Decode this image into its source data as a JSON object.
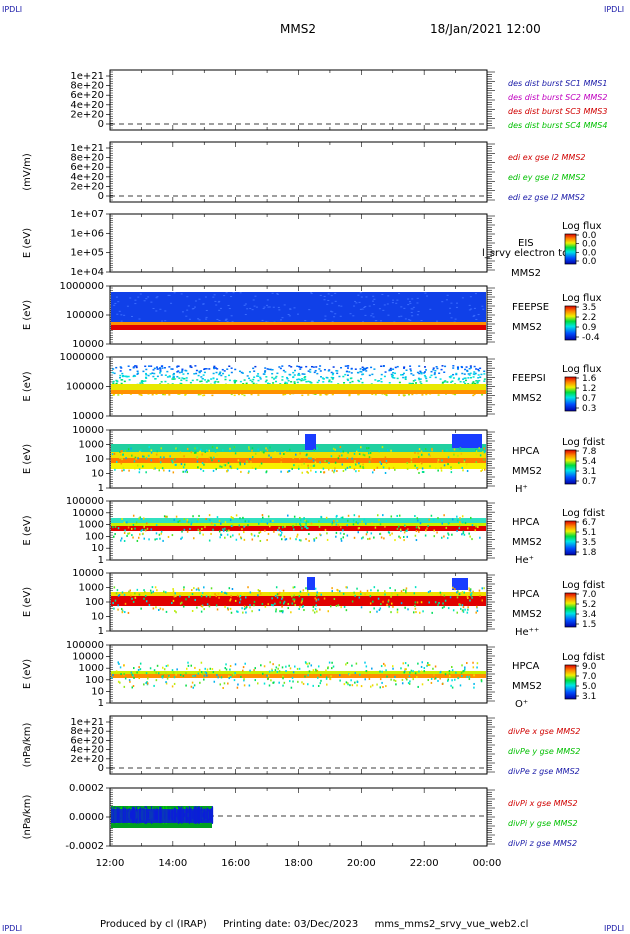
{
  "header": {
    "corner_label": "IPDLI",
    "spacecraft": "MMS2",
    "datetime": "18/Jan/2021 12:00"
  },
  "footer": {
    "produced_by": "Produced by cl (IRAP)",
    "printing_date": "Printing date: 03/Dec/2023",
    "filename": "mms_mms2_srvy_vue_web2.cl"
  },
  "chart_data": {
    "type": "heatmap",
    "x_ticks": [
      "12:00",
      "14:00",
      "16:00",
      "18:00",
      "20:00",
      "22:00",
      "00:00"
    ],
    "panels": [
      {
        "id": "des-dist",
        "kind": "line",
        "ylabel": "",
        "yticks": [
          "1e+21",
          "8e+20",
          "6e+20",
          "4e+20",
          "2e+20",
          "0"
        ],
        "legend": [
          {
            "text": "des dist burst SC1 MMS1",
            "color": "#1a1aa8"
          },
          {
            "text": "des dist burst SC2 MMS2",
            "color": "#c000c0"
          },
          {
            "text": "des dist burst SC3 MMS3",
            "color": "#d00000"
          },
          {
            "text": "des dist burst SC4 MMS4",
            "color": "#00c000"
          }
        ]
      },
      {
        "id": "edi",
        "kind": "line",
        "ylabel": "(mV/m)",
        "yticks": [
          "1e+21",
          "8e+20",
          "6e+20",
          "4e+20",
          "2e+20",
          "0"
        ],
        "legend": [
          {
            "text": "edi ex gse l2 MMS2",
            "color": "#d00000"
          },
          {
            "text": "edi ey gse l2 MMS2",
            "color": "#00c000"
          },
          {
            "text": "edi ez gse l2 MMS2",
            "color": "#1a1aa8"
          }
        ]
      },
      {
        "id": "eis",
        "kind": "empty-spectrogram",
        "ylabel": "E (eV)",
        "yticks": [
          "1e+07",
          "1e+06",
          "1e+05",
          "1e+04"
        ],
        "labels": [
          "EIS",
          "MMS2"
        ],
        "overflow_text": "l_srvy electron to",
        "cbar_title": "Log flux",
        "cbar_ticks": [
          "0.0",
          "0.0",
          "0.0",
          "0.0"
        ]
      },
      {
        "id": "feepse",
        "kind": "spectrogram",
        "ylabel": "E (eV)",
        "yticks": [
          "1000000",
          "100000",
          "10000"
        ],
        "labels": [
          "FEEPSE",
          "MMS2"
        ],
        "cbar_title": "Log flux",
        "cbar_ticks": [
          "3.5",
          "2.2",
          "0.9",
          "-0.4"
        ]
      },
      {
        "id": "feepsi",
        "kind": "spectrogram",
        "ylabel": "E (eV)",
        "yticks": [
          "1000000",
          "100000",
          "10000"
        ],
        "labels": [
          "FEEPSI",
          "MMS2"
        ],
        "cbar_title": "Log flux",
        "cbar_ticks": [
          "1.6",
          "1.2",
          "0.7",
          "0.3"
        ]
      },
      {
        "id": "hpca-h",
        "kind": "spectrogram",
        "ylabel": "E (eV)",
        "yticks": [
          "10000",
          "1000",
          "100",
          "10",
          "1"
        ],
        "labels": [
          "HPCA",
          "MMS2",
          "H⁺"
        ],
        "cbar_title": "Log fdist",
        "cbar_ticks": [
          "7.8",
          "5.4",
          "3.1",
          "0.7"
        ]
      },
      {
        "id": "hpca-he",
        "kind": "spectrogram",
        "ylabel": "E (eV)",
        "yticks": [
          "100000",
          "10000",
          "1000",
          "100",
          "10",
          "1"
        ],
        "labels": [
          "HPCA",
          "MMS2",
          "He⁺"
        ],
        "cbar_title": "Log fdist",
        "cbar_ticks": [
          "6.7",
          "5.1",
          "3.5",
          "1.8"
        ]
      },
      {
        "id": "hpca-hepp",
        "kind": "spectrogram",
        "ylabel": "E (eV)",
        "yticks": [
          "10000",
          "1000",
          "100",
          "10",
          "1"
        ],
        "labels": [
          "HPCA",
          "MMS2",
          "He⁺⁺"
        ],
        "cbar_title": "Log fdist",
        "cbar_ticks": [
          "7.0",
          "5.2",
          "3.4",
          "1.5"
        ]
      },
      {
        "id": "hpca-o",
        "kind": "spectrogram",
        "ylabel": "E (eV)",
        "yticks": [
          "100000",
          "10000",
          "1000",
          "100",
          "10",
          "1"
        ],
        "labels": [
          "HPCA",
          "MMS2",
          "O⁺"
        ],
        "cbar_title": "Log fdist",
        "cbar_ticks": [
          "9.0",
          "7.0",
          "5.0",
          "3.1"
        ]
      },
      {
        "id": "divpe",
        "kind": "line",
        "ylabel": "(nPa/km)",
        "yticks": [
          "1e+21",
          "8e+20",
          "6e+20",
          "4e+20",
          "2e+20",
          "0"
        ],
        "legend": [
          {
            "text": "divPe x gse MMS2",
            "color": "#d00000"
          },
          {
            "text": "divPe y gse MMS2",
            "color": "#00c000"
          },
          {
            "text": "divPe z gse MMS2",
            "color": "#1a1aa8"
          }
        ]
      },
      {
        "id": "divpi",
        "kind": "noise",
        "ylabel": "(nPa/km)",
        "yticks": [
          "0.0002",
          "0.0000",
          "-0.0002"
        ],
        "legend": [
          {
            "text": "divPi x gse MMS2",
            "color": "#d00000"
          },
          {
            "text": "divPi y gse MMS2",
            "color": "#00c000"
          },
          {
            "text": "divPi z gse MMS2",
            "color": "#1a1aa8"
          }
        ]
      }
    ]
  }
}
